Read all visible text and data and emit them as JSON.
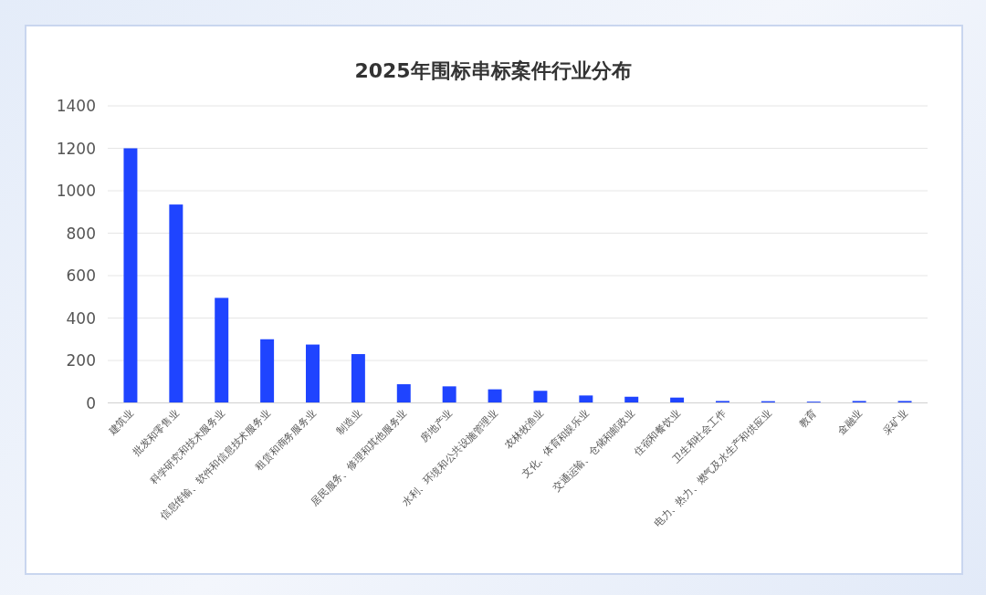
{
  "chart_data": {
    "type": "bar",
    "title": "2025年围标串标案件行业分布",
    "categories": [
      "建筑业",
      "批发和零售业",
      "科学研究和技术服务业",
      "信息传输、软件和信息技术服务业",
      "租赁和商务服务业",
      "制造业",
      "居民服务、修理和其他服务业",
      "房地产业",
      "水利、环境和公共设施管理业",
      "农林牧渔业",
      "文化、体育和娱乐业",
      "交通运输、仓储和邮政业",
      "住宿和餐饮业",
      "卫生和社会工作",
      "电力、热力、燃气及水生产和供应业",
      "教育",
      "金融业",
      "采矿业"
    ],
    "values": [
      1200,
      935,
      495,
      300,
      275,
      230,
      88,
      78,
      64,
      57,
      35,
      29,
      25,
      9,
      8,
      6,
      9,
      9
    ],
    "color": "#1f44ff",
    "ylim": [
      0,
      1400
    ],
    "yticks": [
      0,
      200,
      400,
      600,
      800,
      1000,
      1200,
      1400
    ],
    "grid": "y",
    "legend": false
  }
}
